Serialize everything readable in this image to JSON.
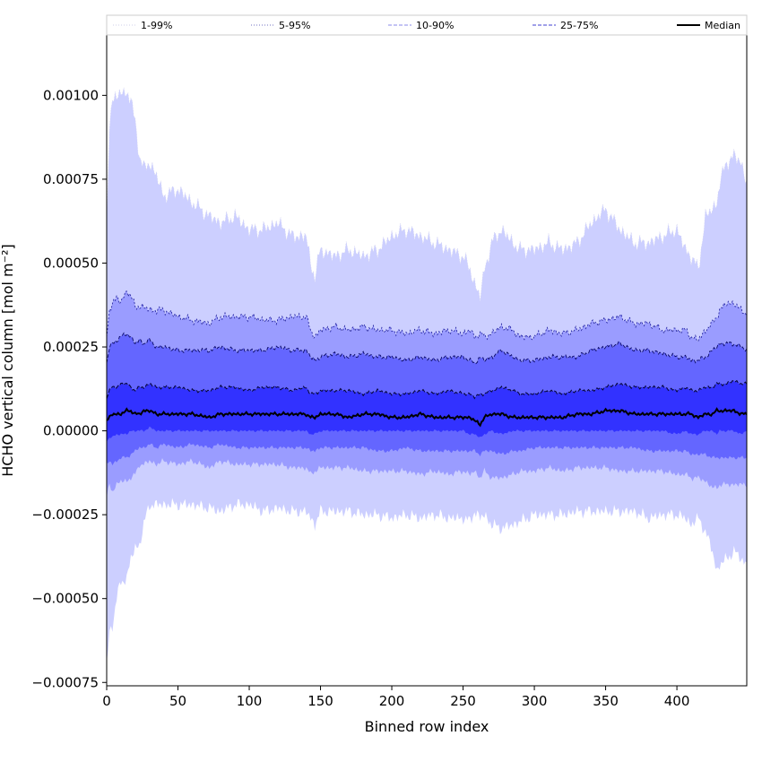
{
  "chart_data": {
    "type": "area",
    "xlabel": "Binned row index",
    "ylabel": "HCHO vertical column [mol m⁻²]",
    "xlim": [
      0,
      449
    ],
    "ylim": [
      -0.00076,
      0.00118
    ],
    "x_ticks": [
      0,
      50,
      100,
      150,
      200,
      250,
      300,
      350,
      400
    ],
    "x_tick_labels": [
      "0",
      "50",
      "100",
      "150",
      "200",
      "250",
      "300",
      "350",
      "400"
    ],
    "y_ticks": [
      -0.00075,
      -0.0005,
      -0.00025,
      0.0,
      0.00025,
      0.0005,
      0.00075,
      0.001
    ],
    "y_tick_labels": [
      "−0.00075",
      "−0.00050",
      "−0.00025",
      "0.00000",
      "0.00025",
      "0.00050",
      "0.00075",
      "0.00100"
    ],
    "grid": false,
    "legend_position": "top",
    "x_knots": [
      0,
      2,
      4,
      7,
      10,
      14,
      17,
      20,
      23,
      26,
      30,
      35,
      40,
      50,
      60,
      72,
      80,
      90,
      100,
      110,
      120,
      130,
      140,
      143,
      146,
      150,
      160,
      170,
      180,
      190,
      200,
      210,
      220,
      230,
      240,
      250,
      255,
      258,
      262,
      265,
      270,
      277,
      285,
      290,
      300,
      310,
      320,
      330,
      340,
      350,
      360,
      370,
      380,
      390,
      400,
      406,
      410,
      415,
      420,
      425,
      428,
      430,
      435,
      440,
      445,
      449
    ],
    "series": [
      {
        "name": "1-99%",
        "upper": [
          0.0006,
          0.00092,
          0.001,
          0.00098,
          0.00102,
          0.001,
          0.00099,
          0.00092,
          0.00082,
          0.00078,
          0.0008,
          0.00076,
          0.0007,
          0.00072,
          0.00068,
          0.00064,
          0.00062,
          0.00064,
          0.0006,
          0.0006,
          0.00062,
          0.00058,
          0.00058,
          0.0005,
          0.00046,
          0.00054,
          0.00052,
          0.00054,
          0.00052,
          0.00054,
          0.00058,
          0.0006,
          0.00058,
          0.00056,
          0.00054,
          0.00052,
          0.00048,
          0.00044,
          0.0004,
          0.00048,
          0.00056,
          0.0006,
          0.00056,
          0.00054,
          0.00054,
          0.00056,
          0.00054,
          0.00056,
          0.00062,
          0.00066,
          0.0006,
          0.00056,
          0.00056,
          0.00058,
          0.0006,
          0.00054,
          0.00052,
          0.00048,
          0.00064,
          0.00066,
          0.00068,
          0.00074,
          0.0008,
          0.00082,
          0.0008,
          0.00074
        ],
        "lower": [
          -0.0007,
          -0.0006,
          -0.00058,
          -0.0005,
          -0.00045,
          -0.00044,
          -0.00038,
          -0.00035,
          -0.00034,
          -0.00028,
          -0.00022,
          -0.00022,
          -0.00022,
          -0.00022,
          -0.00022,
          -0.00023,
          -0.00024,
          -0.00022,
          -0.00022,
          -0.00024,
          -0.00023,
          -0.00024,
          -0.00024,
          -0.00026,
          -0.00028,
          -0.00024,
          -0.00024,
          -0.00024,
          -0.00025,
          -0.00025,
          -0.00026,
          -0.00025,
          -0.00026,
          -0.00025,
          -0.00026,
          -0.00026,
          -0.00027,
          -0.00024,
          -0.00026,
          -0.00025,
          -0.00028,
          -0.00029,
          -0.00028,
          -0.00027,
          -0.00025,
          -0.00025,
          -0.00025,
          -0.00024,
          -0.00024,
          -0.00024,
          -0.00024,
          -0.00024,
          -0.00026,
          -0.00025,
          -0.00025,
          -0.00026,
          -0.00028,
          -0.00026,
          -0.0003,
          -0.00036,
          -0.00042,
          -0.0004,
          -0.00038,
          -0.00036,
          -0.00038,
          -0.0004
        ]
      },
      {
        "name": "5-95%",
        "upper": [
          0.00028,
          0.00036,
          0.00038,
          0.0004,
          0.00038,
          0.00042,
          0.0004,
          0.00037,
          0.00037,
          0.00037,
          0.00036,
          0.00036,
          0.00036,
          0.00034,
          0.00033,
          0.00032,
          0.00034,
          0.00034,
          0.00034,
          0.00033,
          0.00033,
          0.00034,
          0.00034,
          0.0003,
          0.00028,
          0.0003,
          0.00031,
          0.0003,
          0.00031,
          0.0003,
          0.0003,
          0.00029,
          0.0003,
          0.00029,
          0.0003,
          0.00029,
          0.0003,
          0.00028,
          0.00029,
          0.00028,
          0.00029,
          0.00031,
          0.0003,
          0.00028,
          0.00028,
          0.0003,
          0.00029,
          0.0003,
          0.00032,
          0.00033,
          0.00034,
          0.00032,
          0.00032,
          0.0003,
          0.0003,
          0.0003,
          0.00028,
          0.00027,
          0.0003,
          0.00032,
          0.00034,
          0.00036,
          0.00038,
          0.00038,
          0.00036,
          0.00035
        ],
        "lower": [
          -0.0002,
          -0.00016,
          -0.00018,
          -0.00016,
          -0.00015,
          -0.00015,
          -0.00014,
          -0.00013,
          -0.0001,
          -0.0001,
          -9e-05,
          -0.0001,
          -9e-05,
          -0.0001,
          -9e-05,
          -0.00011,
          -9e-05,
          -0.0001,
          -0.0001,
          -0.0001,
          -0.0001,
          -0.00011,
          -0.00011,
          -0.00013,
          -0.00012,
          -0.00011,
          -0.00011,
          -0.00011,
          -0.00012,
          -0.00012,
          -0.00012,
          -0.00012,
          -0.00013,
          -0.00012,
          -0.00013,
          -0.00012,
          -0.00013,
          -0.00012,
          -0.00014,
          -0.00012,
          -0.00014,
          -0.00014,
          -0.00013,
          -0.00012,
          -0.00012,
          -0.00011,
          -0.00012,
          -0.00011,
          -0.00011,
          -0.00011,
          -0.00012,
          -0.00012,
          -0.00012,
          -0.00012,
          -0.00013,
          -0.00013,
          -0.00014,
          -0.00014,
          -0.00015,
          -0.00017,
          -0.00017,
          -0.00016,
          -0.00016,
          -0.00016,
          -0.00016,
          -0.00016
        ]
      },
      {
        "name": "10-90%",
        "upper": [
          0.0002,
          0.00025,
          0.00026,
          0.00027,
          0.00028,
          0.00029,
          0.00028,
          0.00026,
          0.00027,
          0.00026,
          0.00027,
          0.00025,
          0.00025,
          0.00024,
          0.00024,
          0.00024,
          0.00025,
          0.00024,
          0.00024,
          0.00024,
          0.00025,
          0.00024,
          0.00024,
          0.00022,
          0.00021,
          0.00022,
          0.00023,
          0.00022,
          0.00023,
          0.00022,
          0.00022,
          0.00021,
          0.00022,
          0.00021,
          0.00022,
          0.00022,
          0.00021,
          0.0002,
          0.00022,
          0.00021,
          0.00022,
          0.00024,
          0.00022,
          0.00021,
          0.00021,
          0.00022,
          0.00022,
          0.00022,
          0.00024,
          0.00025,
          0.00026,
          0.00024,
          0.00024,
          0.00023,
          0.00022,
          0.00022,
          0.00021,
          0.00021,
          0.00022,
          0.00024,
          0.00025,
          0.00026,
          0.00026,
          0.00026,
          0.00025,
          0.00024
        ],
        "lower": [
          -0.0001,
          -9e-05,
          -0.0001,
          -9e-05,
          -8e-05,
          -8e-05,
          -7e-05,
          -6e-05,
          -5e-05,
          -5e-05,
          -4e-05,
          -5e-05,
          -4e-05,
          -5e-05,
          -4e-05,
          -5e-05,
          -4e-05,
          -5e-05,
          -5e-05,
          -5e-05,
          -5e-05,
          -5e-05,
          -5e-05,
          -6e-05,
          -6e-05,
          -5e-05,
          -5e-05,
          -5e-05,
          -5e-05,
          -6e-05,
          -6e-05,
          -5e-05,
          -6e-05,
          -6e-05,
          -6e-05,
          -6e-05,
          -6e-05,
          -6e-05,
          -7e-05,
          -6e-05,
          -6e-05,
          -7e-05,
          -6e-05,
          -6e-05,
          -5e-05,
          -5e-05,
          -5e-05,
          -5e-05,
          -5e-05,
          -5e-05,
          -5e-05,
          -5e-05,
          -6e-05,
          -6e-05,
          -6e-05,
          -6e-05,
          -7e-05,
          -7e-05,
          -7e-05,
          -8e-05,
          -8e-05,
          -8e-05,
          -8e-05,
          -8e-05,
          -8e-05,
          -8e-05
        ]
      },
      {
        "name": "25-75%",
        "upper": [
          0.0001,
          0.00012,
          0.00013,
          0.00013,
          0.00014,
          0.00014,
          0.00013,
          0.00012,
          0.00013,
          0.00013,
          0.00014,
          0.00013,
          0.00013,
          0.00013,
          0.00012,
          0.00012,
          0.00013,
          0.00013,
          0.00012,
          0.00013,
          0.00013,
          0.00012,
          0.00013,
          0.00011,
          0.00011,
          0.00012,
          0.00012,
          0.00012,
          0.00011,
          0.00012,
          0.00011,
          0.00011,
          0.00012,
          0.00011,
          0.00012,
          0.00011,
          0.00011,
          0.0001,
          0.00011,
          0.00011,
          0.00012,
          0.00013,
          0.00012,
          0.00011,
          0.00011,
          0.00012,
          0.00011,
          0.00012,
          0.00012,
          0.00013,
          0.00014,
          0.00013,
          0.00013,
          0.00013,
          0.00012,
          0.00013,
          0.00012,
          0.00012,
          0.00013,
          0.00013,
          0.00014,
          0.00014,
          0.00014,
          0.00015,
          0.00014,
          0.00014
        ],
        "lower": [
          -3e-05,
          -2e-05,
          -2e-05,
          -1e-05,
          -1e-05,
          -1e-05,
          0.0,
          0.0,
          0.0,
          0.0,
          1e-05,
          0.0,
          0.0,
          0.0,
          0.0,
          0.0,
          0.0,
          0.0,
          0.0,
          0.0,
          0.0,
          0.0,
          0.0,
          -1e-05,
          -1e-05,
          0.0,
          0.0,
          0.0,
          0.0,
          0.0,
          0.0,
          0.0,
          0.0,
          0.0,
          0.0,
          0.0,
          -1e-05,
          -1e-05,
          -2e-05,
          -1e-05,
          0.0,
          -1e-05,
          0.0,
          0.0,
          0.0,
          0.0,
          0.0,
          0.0,
          0.0,
          0.0,
          0.0,
          0.0,
          0.0,
          0.0,
          -1e-05,
          0.0,
          -1e-05,
          -1e-05,
          0.0,
          0.0,
          -1e-05,
          0.0,
          0.0,
          0.0,
          -1e-05,
          0.0
        ]
      },
      {
        "name": "Median",
        "values": [
          3e-05,
          4e-05,
          5e-05,
          5e-05,
          5e-05,
          6e-05,
          6e-05,
          5e-05,
          5e-05,
          6e-05,
          6e-05,
          5e-05,
          5e-05,
          5e-05,
          5e-05,
          4e-05,
          5e-05,
          5e-05,
          5e-05,
          5e-05,
          5e-05,
          5e-05,
          5e-05,
          4e-05,
          4e-05,
          5e-05,
          5e-05,
          4e-05,
          5e-05,
          5e-05,
          4e-05,
          4e-05,
          5e-05,
          4e-05,
          4e-05,
          4e-05,
          4e-05,
          3e-05,
          2e-05,
          4e-05,
          5e-05,
          5e-05,
          4e-05,
          4e-05,
          4e-05,
          4e-05,
          4e-05,
          5e-05,
          5e-05,
          6e-05,
          6e-05,
          5e-05,
          5e-05,
          5e-05,
          5e-05,
          5e-05,
          5e-05,
          4e-05,
          5e-05,
          5e-05,
          6e-05,
          6e-05,
          6e-05,
          6e-05,
          5e-05,
          5e-05
        ]
      }
    ],
    "colors": {
      "band_1_99": "#cccfff",
      "band_5_95": "#9a9cff",
      "band_10_90": "#6466ff",
      "band_25_75": "#3232ff",
      "line_1_99": "#d6d6ee",
      "line_5_95": "#1a1a9a",
      "line_10_90": "#0a0a66",
      "line_25_75": "#050533",
      "median": "#000000"
    },
    "legend": [
      {
        "label": "1-99%",
        "style": "dotted",
        "color": "#cfcfe8"
      },
      {
        "label": "5-95%",
        "style": "dotted",
        "color": "#7070c0"
      },
      {
        "label": "10-90%",
        "style": "dashed",
        "color": "#8a8ae8"
      },
      {
        "label": "25-75%",
        "style": "dashed",
        "color": "#4040d0"
      },
      {
        "label": "Median",
        "style": "solid",
        "color": "#000000"
      }
    ]
  }
}
